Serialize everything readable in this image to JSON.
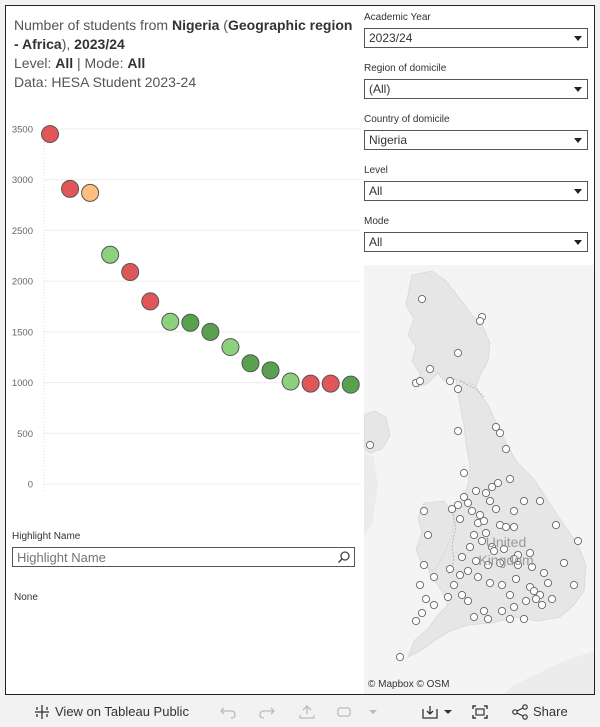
{
  "title": {
    "line1_pre": "Number of students from ",
    "line1_bold": "Nigeria",
    "line1_mid": " (",
    "line1_bold2": "Geographic region - Africa",
    "line1_post": "), ",
    "line1_year": "2023/24",
    "line2_pre": "Level: ",
    "line2_level": "All",
    "line2_mid": " | Mode: ",
    "line2_mode": "All",
    "line3": "Data: HESA Student 2023-24"
  },
  "chart_data": {
    "type": "scatter",
    "title": "",
    "xlabel": "",
    "ylabel": "",
    "ylim": [
      0,
      3500
    ],
    "y_ticks": [
      "3500",
      "3000",
      "2500",
      "2000",
      "1500",
      "1000",
      "500",
      "0"
    ],
    "y_tick_values": [
      3500,
      3000,
      2500,
      2000,
      1500,
      1000,
      500,
      0
    ],
    "grid": true,
    "points": [
      {
        "rank": 1,
        "value": 3450,
        "color": "#e15759"
      },
      {
        "rank": 2,
        "value": 2910,
        "color": "#e15759"
      },
      {
        "rank": 3,
        "value": 2870,
        "color": "#ffbe7d"
      },
      {
        "rank": 4,
        "value": 2260,
        "color": "#8cd17d"
      },
      {
        "rank": 5,
        "value": 2090,
        "color": "#e15759"
      },
      {
        "rank": 6,
        "value": 1800,
        "color": "#e15759"
      },
      {
        "rank": 7,
        "value": 1600,
        "color": "#8cd17d"
      },
      {
        "rank": 8,
        "value": 1590,
        "color": "#59a14f"
      },
      {
        "rank": 9,
        "value": 1500,
        "color": "#59a14f"
      },
      {
        "rank": 10,
        "value": 1350,
        "color": "#8cd17d"
      },
      {
        "rank": 11,
        "value": 1190,
        "color": "#59a14f"
      },
      {
        "rank": 12,
        "value": 1120,
        "color": "#59a14f"
      },
      {
        "rank": 13,
        "value": 1010,
        "color": "#8cd17d"
      },
      {
        "rank": 14,
        "value": 990,
        "color": "#e15759"
      },
      {
        "rank": 15,
        "value": 990,
        "color": "#e15759"
      },
      {
        "rank": 16,
        "value": 980,
        "color": "#59a14f"
      }
    ]
  },
  "highlight": {
    "label": "Highlight Name",
    "placeholder": "Highlight Name",
    "none_text": "None"
  },
  "filters": [
    {
      "label": "Academic Year",
      "value": "2023/24"
    },
    {
      "label": "Region of domicile",
      "value": "(All)"
    },
    {
      "label": "Country of domicile",
      "value": "Nigeria"
    },
    {
      "label": "Level",
      "value": "All"
    },
    {
      "label": "Mode",
      "value": "All"
    }
  ],
  "map": {
    "country_label_1": "United",
    "country_label_2": "Kingdom",
    "attribution": "© Mapbox  © OSM",
    "land_color": "#e6e6e6",
    "sea_color": "#f4f4f4",
    "marker_count": 95
  },
  "toolbar": {
    "view_label": "View on Tableau Public",
    "share_label": "Share",
    "icons": [
      "tableau-icon",
      "undo-icon",
      "redo-icon",
      "revert-icon",
      "refresh-icon",
      "download-icon",
      "fullscreen-icon",
      "share-icon"
    ]
  }
}
